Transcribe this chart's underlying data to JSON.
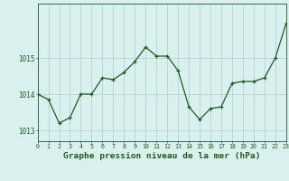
{
  "x": [
    0,
    1,
    2,
    3,
    4,
    5,
    6,
    7,
    8,
    9,
    10,
    11,
    12,
    13,
    14,
    15,
    16,
    17,
    18,
    19,
    20,
    21,
    22,
    23
  ],
  "y": [
    1014.0,
    1013.85,
    1013.2,
    1013.35,
    1014.0,
    1014.0,
    1014.45,
    1014.4,
    1014.6,
    1014.9,
    1015.3,
    1015.05,
    1015.05,
    1014.65,
    1013.65,
    1013.3,
    1013.6,
    1013.65,
    1014.3,
    1014.35,
    1014.35,
    1014.45,
    1015.0,
    1015.95
  ],
  "line_color": "#1e5c1e",
  "marker_color": "#1e5c1e",
  "bg_color": "#d9f0ee",
  "grid_color": "#aacfcf",
  "xlabel": "Graphe pression niveau de la mer (hPa)",
  "xlabel_color": "#1e5c1e",
  "tick_color": "#1e5c1e",
  "ylim": [
    1012.7,
    1016.5
  ],
  "xlim": [
    0,
    23
  ],
  "yticks": [
    1013,
    1014,
    1015
  ],
  "xticks": [
    0,
    1,
    2,
    3,
    4,
    5,
    6,
    7,
    8,
    9,
    10,
    11,
    12,
    13,
    14,
    15,
    16,
    17,
    18,
    19,
    20,
    21,
    22,
    23
  ],
  "xtick_fontsize": 4.8,
  "ytick_fontsize": 5.5,
  "xlabel_fontsize": 6.8,
  "linewidth": 0.9,
  "markersize": 3.0
}
